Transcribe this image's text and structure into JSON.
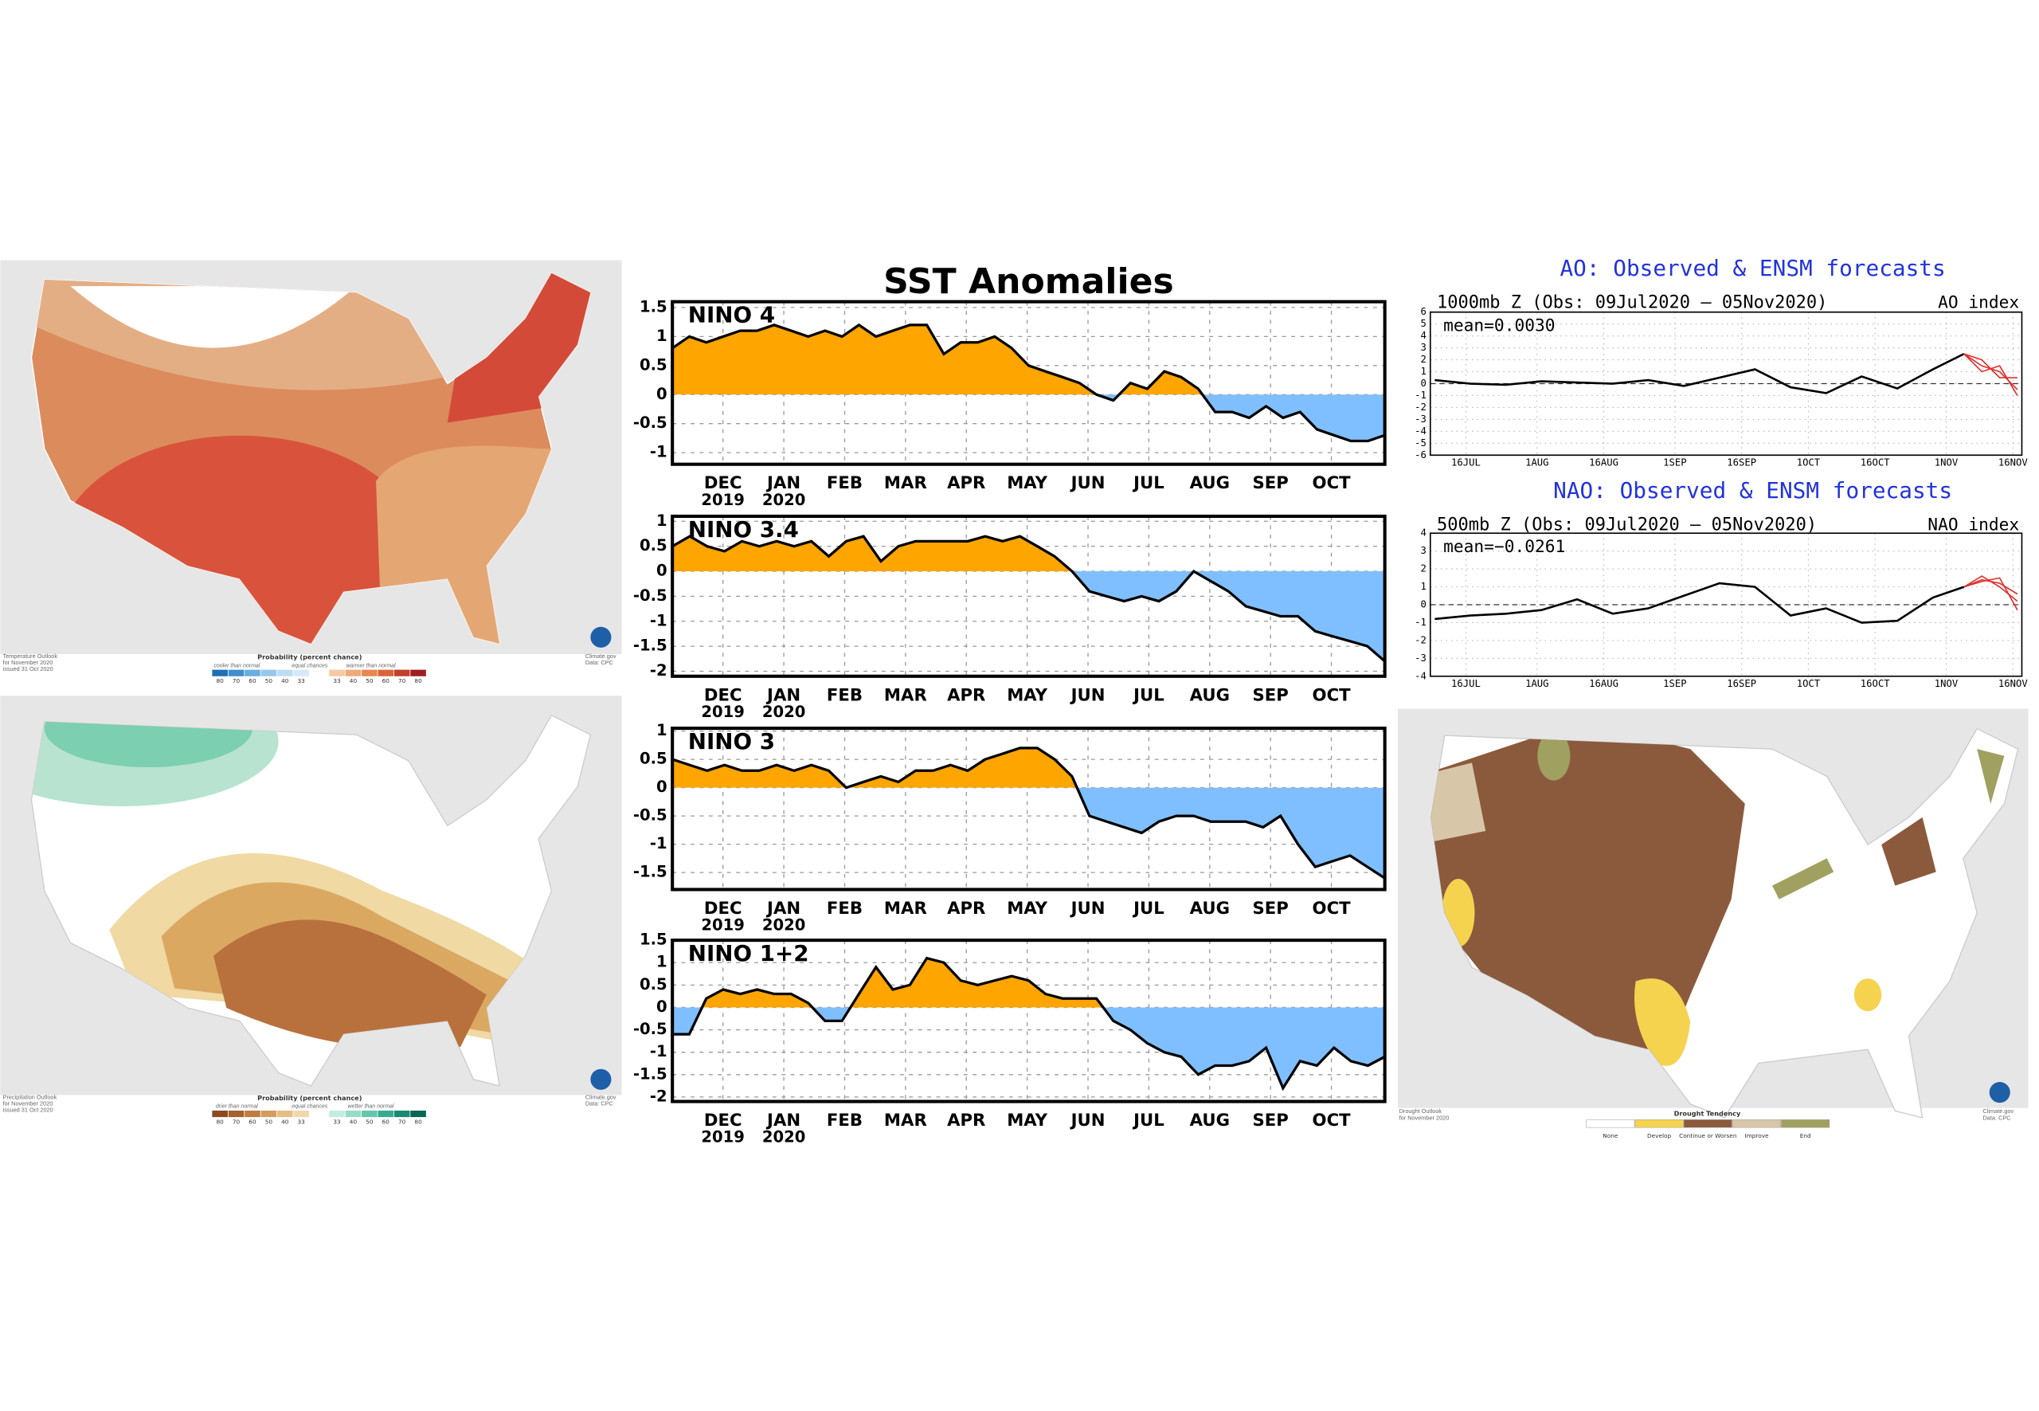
{
  "sst_header": {
    "title": "SST Anomalies"
  },
  "chart_data": [
    {
      "type": "area",
      "label": "NINO 4",
      "x_labels": [
        "DEC",
        "JAN",
        "FEB",
        "MAR",
        "APR",
        "MAY",
        "JUN",
        "JUL",
        "AUG",
        "SEP",
        "OCT"
      ],
      "year_labels": [
        "2019",
        "2020"
      ],
      "ylim": [
        -1.2,
        1.6
      ],
      "yticks": [
        -1,
        -0.5,
        0,
        0.5,
        1,
        1.5
      ],
      "grid": true,
      "pos_color": "#ffa500",
      "neg_color": "#7fbfff",
      "line_color": "#000000",
      "values": [
        0.8,
        1.0,
        0.9,
        1.0,
        1.1,
        1.1,
        1.2,
        1.1,
        1.0,
        1.1,
        1.0,
        1.2,
        1.0,
        1.1,
        1.2,
        1.2,
        0.7,
        0.9,
        0.9,
        1.0,
        0.8,
        0.5,
        0.4,
        0.3,
        0.2,
        0.0,
        -0.1,
        0.2,
        0.1,
        0.4,
        0.3,
        0.1,
        -0.3,
        -0.3,
        -0.4,
        -0.2,
        -0.4,
        -0.3,
        -0.6,
        -0.7,
        -0.8,
        -0.8,
        -0.7
      ]
    },
    {
      "type": "area",
      "label": "NINO 3.4",
      "x_labels": [
        "DEC",
        "JAN",
        "FEB",
        "MAR",
        "APR",
        "MAY",
        "JUN",
        "JUL",
        "AUG",
        "SEP",
        "OCT"
      ],
      "year_labels": [
        "2019",
        "2020"
      ],
      "ylim": [
        -2.1,
        1.1
      ],
      "yticks": [
        -2,
        -1.5,
        -1,
        -0.5,
        0,
        0.5,
        1
      ],
      "grid": true,
      "pos_color": "#ffa500",
      "neg_color": "#7fbfff",
      "line_color": "#000000",
      "values": [
        0.5,
        0.7,
        0.5,
        0.4,
        0.6,
        0.5,
        0.6,
        0.5,
        0.6,
        0.3,
        0.6,
        0.7,
        0.2,
        0.5,
        0.6,
        0.6,
        0.6,
        0.6,
        0.7,
        0.6,
        0.7,
        0.5,
        0.3,
        0.0,
        -0.4,
        -0.5,
        -0.6,
        -0.5,
        -0.6,
        -0.4,
        0.0,
        -0.2,
        -0.4,
        -0.7,
        -0.8,
        -0.9,
        -0.9,
        -1.2,
        -1.3,
        -1.4,
        -1.5,
        -1.8
      ]
    },
    {
      "type": "area",
      "label": "NINO 3",
      "x_labels": [
        "DEC",
        "JAN",
        "FEB",
        "MAR",
        "APR",
        "MAY",
        "JUN",
        "JUL",
        "AUG",
        "SEP",
        "OCT"
      ],
      "year_labels": [
        "2019",
        "2020"
      ],
      "ylim": [
        -1.8,
        1.05
      ],
      "yticks": [
        -1.5,
        -1,
        -0.5,
        0,
        0.5,
        1
      ],
      "grid": true,
      "pos_color": "#ffa500",
      "neg_color": "#7fbfff",
      "line_color": "#000000",
      "values": [
        0.5,
        0.4,
        0.3,
        0.4,
        0.3,
        0.3,
        0.4,
        0.3,
        0.4,
        0.3,
        0.0,
        0.1,
        0.2,
        0.1,
        0.3,
        0.3,
        0.4,
        0.3,
        0.5,
        0.6,
        0.7,
        0.7,
        0.5,
        0.2,
        -0.5,
        -0.6,
        -0.7,
        -0.8,
        -0.6,
        -0.5,
        -0.5,
        -0.6,
        -0.6,
        -0.6,
        -0.7,
        -0.5,
        -1.0,
        -1.4,
        -1.3,
        -1.2,
        -1.4,
        -1.6
      ]
    },
    {
      "type": "area",
      "label": "NINO 1+2",
      "x_labels": [
        "DEC",
        "JAN",
        "FEB",
        "MAR",
        "APR",
        "MAY",
        "JUN",
        "JUL",
        "AUG",
        "SEP",
        "OCT"
      ],
      "year_labels": [
        "2019",
        "2020"
      ],
      "ylim": [
        -2.1,
        1.5
      ],
      "yticks": [
        -2,
        -1.5,
        -1,
        -0.5,
        0,
        0.5,
        1,
        1.5
      ],
      "grid": true,
      "pos_color": "#ffa500",
      "neg_color": "#7fbfff",
      "line_color": "#000000",
      "values": [
        -0.6,
        -0.6,
        0.2,
        0.4,
        0.3,
        0.4,
        0.3,
        0.3,
        0.1,
        -0.3,
        -0.3,
        0.3,
        0.9,
        0.4,
        0.5,
        1.1,
        1.0,
        0.6,
        0.5,
        0.6,
        0.7,
        0.6,
        0.3,
        0.2,
        0.2,
        0.2,
        -0.3,
        -0.5,
        -0.8,
        -1.0,
        -1.1,
        -1.5,
        -1.3,
        -1.3,
        -1.2,
        -0.9,
        -1.8,
        -1.2,
        -1.3,
        -0.9,
        -1.2,
        -1.3,
        -1.1
      ]
    },
    {
      "type": "line",
      "title": "AO: Observed & ENSM forecasts",
      "subtitle": "1000mb Z (Obs: 09Jul2020 – 05Nov2020)",
      "index_label": "AO index",
      "mean_label": "mean=0.0030",
      "title_color": "#2233dd",
      "grid": true,
      "zero_line": true,
      "xlim": [
        "2020-07-08",
        "2020-11-18"
      ],
      "xticks": [
        {
          "value": "2020-07-16",
          "label": "16JUL"
        },
        {
          "value": "2020-08-01",
          "label": "1AUG"
        },
        {
          "value": "2020-08-16",
          "label": "16AUG"
        },
        {
          "value": "2020-09-01",
          "label": "1SEP"
        },
        {
          "value": "2020-09-16",
          "label": "16SEP"
        },
        {
          "value": "2020-10-01",
          "label": "1OCT"
        },
        {
          "value": "2020-10-16",
          "label": "16OCT"
        },
        {
          "value": "2020-11-01",
          "label": "1NOV"
        },
        {
          "value": "2020-11-16",
          "label": "16NOV"
        }
      ],
      "ylim": [
        -6,
        6
      ],
      "yticks": [
        -6,
        -5,
        -4,
        -3,
        -2,
        -1,
        0,
        1,
        2,
        3,
        4,
        5,
        6
      ],
      "series": [
        {
          "color": "#000000",
          "x": [
            "2020-07-09",
            "2020-07-17",
            "2020-07-25",
            "2020-08-02",
            "2020-08-10",
            "2020-08-18",
            "2020-08-26",
            "2020-09-03",
            "2020-09-11",
            "2020-09-19",
            "2020-09-27",
            "2020-10-05",
            "2020-10-13",
            "2020-10-21",
            "2020-10-29",
            "2020-11-05"
          ],
          "values": [
            0.3,
            0.0,
            -0.1,
            0.2,
            0.1,
            0.0,
            0.3,
            -0.2,
            0.5,
            1.2,
            -0.3,
            -0.8,
            0.6,
            -0.4,
            1.2,
            2.5
          ]
        },
        {
          "color": "#e03030",
          "x": [
            "2020-11-05",
            "2020-11-09",
            "2020-11-13",
            "2020-11-17"
          ],
          "values": [
            2.5,
            1.5,
            1.0,
            -0.5
          ]
        },
        {
          "color": "#e03030",
          "x": [
            "2020-11-05",
            "2020-11-09",
            "2020-11-13",
            "2020-11-17"
          ],
          "values": [
            2.5,
            2.0,
            0.5,
            0.5
          ]
        },
        {
          "color": "#e03030",
          "x": [
            "2020-11-05",
            "2020-11-09",
            "2020-11-13",
            "2020-11-17"
          ],
          "values": [
            2.5,
            1.0,
            1.5,
            -1.0
          ]
        }
      ]
    },
    {
      "type": "line",
      "title": "NAO: Observed & ENSM forecasts",
      "subtitle": "500mb Z (Obs: 09Jul2020 – 05Nov2020)",
      "index_label": "NAO index",
      "mean_label": "mean=−0.0261",
      "title_color": "#2233dd",
      "grid": true,
      "zero_line": true,
      "xlim": [
        "2020-07-08",
        "2020-11-18"
      ],
      "xticks": [
        {
          "value": "2020-07-16",
          "label": "16JUL"
        },
        {
          "value": "2020-08-01",
          "label": "1AUG"
        },
        {
          "value": "2020-08-16",
          "label": "16AUG"
        },
        {
          "value": "2020-09-01",
          "label": "1SEP"
        },
        {
          "value": "2020-09-16",
          "label": "16SEP"
        },
        {
          "value": "2020-10-01",
          "label": "1OCT"
        },
        {
          "value": "2020-10-16",
          "label": "16OCT"
        },
        {
          "value": "2020-11-01",
          "label": "1NOV"
        },
        {
          "value": "2020-11-16",
          "label": "16NOV"
        }
      ],
      "ylim": [
        -4,
        4
      ],
      "yticks": [
        -4,
        -3,
        -2,
        -1,
        0,
        1,
        2,
        3,
        4
      ],
      "series": [
        {
          "color": "#000000",
          "x": [
            "2020-07-09",
            "2020-07-17",
            "2020-07-25",
            "2020-08-02",
            "2020-08-10",
            "2020-08-18",
            "2020-08-26",
            "2020-09-03",
            "2020-09-11",
            "2020-09-19",
            "2020-09-27",
            "2020-10-05",
            "2020-10-13",
            "2020-10-21",
            "2020-10-29",
            "2020-11-05"
          ],
          "values": [
            -0.8,
            -0.6,
            -0.5,
            -0.3,
            0.3,
            -0.5,
            -0.2,
            0.5,
            1.2,
            1.0,
            -0.6,
            -0.2,
            -1.0,
            -0.9,
            0.4,
            1.0
          ]
        },
        {
          "color": "#e03030",
          "x": [
            "2020-11-05",
            "2020-11-09",
            "2020-11-13",
            "2020-11-17"
          ],
          "values": [
            1.0,
            1.4,
            1.2,
            0.6
          ]
        },
        {
          "color": "#e03030",
          "x": [
            "2020-11-05",
            "2020-11-09",
            "2020-11-13",
            "2020-11-17"
          ],
          "values": [
            1.0,
            1.6,
            1.0,
            0.2
          ]
        },
        {
          "color": "#e03030",
          "x": [
            "2020-11-05",
            "2020-11-09",
            "2020-11-13",
            "2020-11-17"
          ],
          "values": [
            1.0,
            1.3,
            1.5,
            -0.3
          ]
        }
      ]
    }
  ],
  "maps": [
    {
      "caption": [
        "Temperature Outlook",
        "for November 2020",
        "issued 31 Oct 2020"
      ],
      "legend_title": "Probability (percent chance)",
      "legend_groups": [
        "cooler than normal",
        "equal chances",
        "warmer than normal"
      ],
      "scale_labels": [
        80,
        70,
        60,
        50,
        40,
        33,
        33,
        40,
        50,
        60,
        70,
        80
      ],
      "credit": [
        "Climate.gov",
        "Data: CPC"
      ]
    },
    {
      "caption": [
        "Precipitation Outlook",
        "for November 2020",
        "issued 31 Oct 2020"
      ],
      "legend_title": "Probability (percent chance)",
      "legend_groups": [
        "drier than normal",
        "equal chances",
        "wetter than normal"
      ],
      "scale_labels": [
        80,
        70,
        60,
        50,
        40,
        33,
        33,
        40,
        50,
        60,
        70,
        80
      ],
      "credit": [
        "Climate.gov",
        "Data: CPC"
      ]
    },
    {
      "caption": [
        "Drought Outlook",
        "for November 2020"
      ],
      "legend_title": "Drought Tendency",
      "legend_items": [
        "None",
        "Develop",
        "Continue or Worsen",
        "Improve",
        "End"
      ],
      "credit": [
        "Climate.gov",
        "Data: CPC"
      ]
    }
  ]
}
